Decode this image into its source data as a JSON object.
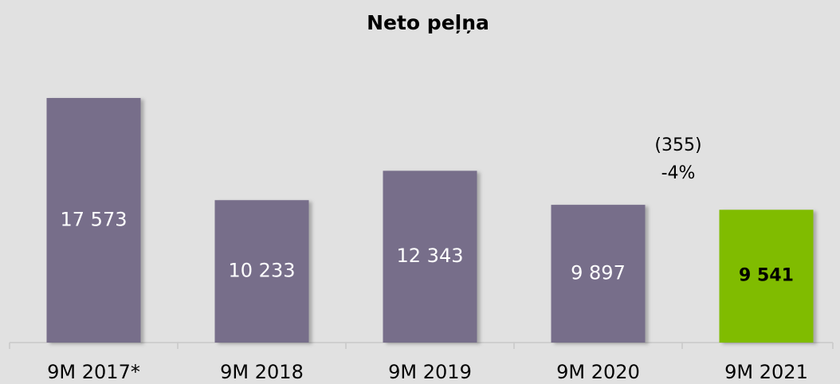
{
  "chart_data": {
    "type": "bar",
    "title": "Neto peļņa",
    "categories": [
      "9M 2017*",
      "9M 2018",
      "9M 2019",
      "9M 2020",
      "9M 2021"
    ],
    "values": [
      17573,
      10233,
      12343,
      9897,
      9541
    ],
    "value_labels": [
      "17 573",
      "10 233",
      "12 343",
      "9 897",
      "9 541"
    ],
    "colors": [
      "#776e8a",
      "#776e8a",
      "#776e8a",
      "#776e8a",
      "#80bc00"
    ],
    "value_label_colors": [
      "#ffffff",
      "#ffffff",
      "#ffffff",
      "#ffffff",
      "#000000"
    ],
    "annotations": [
      "(355)",
      "-4%"
    ],
    "ylim": [
      0,
      20000
    ]
  }
}
